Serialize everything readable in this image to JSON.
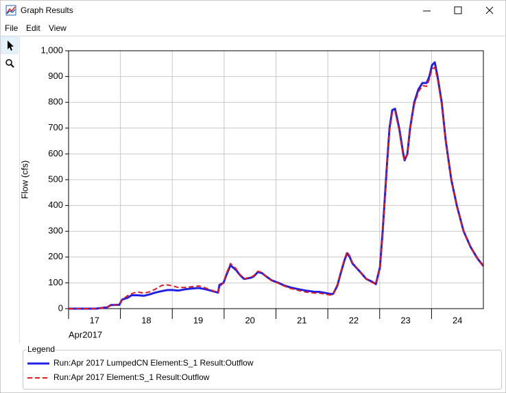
{
  "window": {
    "title": "Graph Results",
    "menu": [
      "File",
      "Edit",
      "View"
    ]
  },
  "chart_data": {
    "type": "line",
    "y_label": "Flow (cfs)",
    "x_period_label": "Apr2017",
    "legend_title": "Legend",
    "legend_position": "bottom",
    "grid": true,
    "xlim": [
      17,
      25
    ],
    "xticks": [
      17,
      18,
      19,
      20,
      21,
      22,
      23,
      24
    ],
    "ylim": [
      0,
      1000
    ],
    "yticks": [
      0,
      100,
      200,
      300,
      400,
      500,
      600,
      700,
      800,
      900,
      {
        "value": 1000,
        "label": "1,000"
      }
    ],
    "x": [
      17.0,
      17.529,
      17.608,
      17.741,
      17.82,
      17.979,
      18.032,
      18.138,
      18.217,
      18.323,
      18.455,
      18.561,
      18.667,
      18.799,
      18.905,
      19.011,
      19.116,
      19.249,
      19.381,
      19.513,
      19.646,
      19.778,
      19.884,
      19.91,
      19.989,
      20.042,
      20.122,
      20.228,
      20.307,
      20.386,
      20.519,
      20.571,
      20.651,
      20.73,
      20.81,
      20.915,
      21.048,
      21.153,
      21.286,
      21.444,
      21.577,
      21.762,
      21.841,
      21.974,
      22.079,
      22.106,
      22.185,
      22.238,
      22.317,
      22.37,
      22.423,
      22.476,
      22.635,
      22.741,
      22.847,
      22.926,
      23.005,
      23.058,
      23.138,
      23.19,
      23.243,
      23.296,
      23.376,
      23.455,
      23.481,
      23.534,
      23.587,
      23.667,
      23.746,
      23.825,
      23.905,
      23.958,
      24.011,
      24.063,
      24.116,
      24.196,
      24.275,
      24.381,
      24.487,
      24.619,
      24.751,
      24.884,
      25.0
    ],
    "series": [
      {
        "name": "Run:Apr 2017 LumpedCN Element:S_1 Result:Outflow",
        "color": "#1f1fe6",
        "line_style": "solid",
        "values": [
          0,
          0,
          2,
          5,
          14,
          15,
          35,
          42,
          52,
          52,
          50,
          55,
          62,
          68,
          72,
          72,
          70,
          75,
          78,
          80,
          75,
          68,
          62,
          92,
          100,
          130,
          168,
          150,
          130,
          115,
          120,
          125,
          142,
          138,
          125,
          110,
          100,
          90,
          82,
          75,
          70,
          65,
          65,
          60,
          56,
          58,
          90,
          130,
          185,
          215,
          200,
          175,
          140,
          115,
          105,
          95,
          160,
          300,
          550,
          700,
          770,
          775,
          700,
          600,
          575,
          600,
          700,
          800,
          850,
          875,
          875,
          900,
          945,
          955,
          900,
          800,
          650,
          500,
          400,
          300,
          240,
          195,
          165
        ]
      },
      {
        "name": "Run:Apr 2017 Element:S_1 Result:Outflow",
        "color": "#e3191c",
        "line_style": "dashed",
        "values": [
          0,
          0,
          2,
          5,
          14,
          15,
          35,
          50,
          58,
          65,
          60,
          65,
          75,
          90,
          92,
          88,
          82,
          82,
          85,
          88,
          80,
          70,
          62,
          85,
          100,
          135,
          175,
          155,
          132,
          116,
          122,
          128,
          145,
          140,
          125,
          108,
          98,
          88,
          78,
          70,
          64,
          60,
          60,
          55,
          52,
          56,
          95,
          135,
          190,
          220,
          205,
          178,
          140,
          115,
          102,
          95,
          155,
          290,
          540,
          690,
          760,
          765,
          690,
          590,
          575,
          600,
          700,
          790,
          840,
          865,
          862,
          890,
          930,
          935,
          890,
          790,
          645,
          495,
          395,
          300,
          240,
          195,
          162
        ]
      }
    ]
  }
}
